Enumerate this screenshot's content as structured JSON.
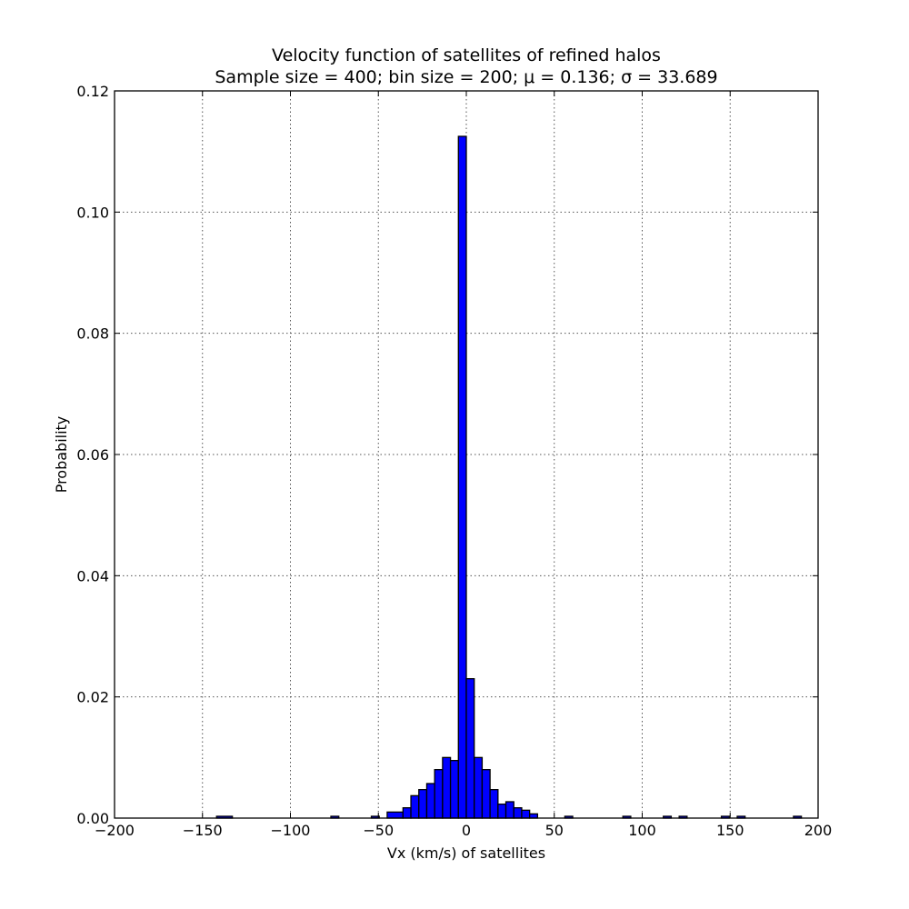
{
  "chart_data": {
    "type": "bar",
    "title_line1": "Velocity function of satellites of refined halos",
    "title_line2": "Sample size = 400; bin size = 200; μ = 0.136; σ = 33.689",
    "xlabel": "Vx (km/s) of satellites",
    "ylabel": "Probability",
    "xlim": [
      -200,
      200
    ],
    "ylim": [
      0,
      0.12
    ],
    "grid": true,
    "bar_color": "#0000ff",
    "edge_color": "#000000",
    "x_ticks": [
      {
        "value": -200,
        "label": "−200"
      },
      {
        "value": -150,
        "label": "−150"
      },
      {
        "value": -100,
        "label": "−100"
      },
      {
        "value": -50,
        "label": "−50"
      },
      {
        "value": 0,
        "label": "0"
      },
      {
        "value": 50,
        "label": "50"
      },
      {
        "value": 100,
        "label": "100"
      },
      {
        "value": 150,
        "label": "150"
      },
      {
        "value": 200,
        "label": "200"
      }
    ],
    "y_ticks": [
      {
        "value": 0,
        "label": "0.00"
      },
      {
        "value": 0.02,
        "label": "0.02"
      },
      {
        "value": 0.04,
        "label": "0.04"
      },
      {
        "value": 0.06,
        "label": "0.06"
      },
      {
        "value": 0.08,
        "label": "0.08"
      },
      {
        "value": 0.1,
        "label": "0.10"
      },
      {
        "value": 0.12,
        "label": "0.12"
      }
    ],
    "bins": [
      {
        "x0": -142.0,
        "x1": -133.0,
        "value": 0.0003
      },
      {
        "x0": -77.0,
        "x1": -72.5,
        "value": 0.0003
      },
      {
        "x0": -54.0,
        "x1": -49.5,
        "value": 0.0003
      },
      {
        "x0": -45.0,
        "x1": -36.0,
        "value": 0.001
      },
      {
        "x0": -36.0,
        "x1": -31.5,
        "value": 0.0017
      },
      {
        "x0": -31.5,
        "x1": -27.0,
        "value": 0.0037
      },
      {
        "x0": -27.0,
        "x1": -22.5,
        "value": 0.0047
      },
      {
        "x0": -22.5,
        "x1": -18.0,
        "value": 0.0057
      },
      {
        "x0": -18.0,
        "x1": -13.5,
        "value": 0.008
      },
      {
        "x0": -13.5,
        "x1": -9.0,
        "value": 0.01
      },
      {
        "x0": -9.0,
        "x1": -4.5,
        "value": 0.0095
      },
      {
        "x0": -4.5,
        "x1": 0.0,
        "value": 0.1125
      },
      {
        "x0": 0.0,
        "x1": 4.5,
        "value": 0.023
      },
      {
        "x0": 4.5,
        "x1": 9.0,
        "value": 0.01
      },
      {
        "x0": 9.0,
        "x1": 13.5,
        "value": 0.008
      },
      {
        "x0": 13.5,
        "x1": 18.0,
        "value": 0.0047
      },
      {
        "x0": 18.0,
        "x1": 22.5,
        "value": 0.0023
      },
      {
        "x0": 22.5,
        "x1": 27.0,
        "value": 0.0027
      },
      {
        "x0": 27.0,
        "x1": 31.5,
        "value": 0.0017
      },
      {
        "x0": 31.5,
        "x1": 36.0,
        "value": 0.0013
      },
      {
        "x0": 36.0,
        "x1": 40.5,
        "value": 0.0007
      },
      {
        "x0": 56.0,
        "x1": 60.5,
        "value": 0.0003
      },
      {
        "x0": 89.0,
        "x1": 93.5,
        "value": 0.0003
      },
      {
        "x0": 112.0,
        "x1": 116.5,
        "value": 0.0003
      },
      {
        "x0": 121.0,
        "x1": 125.5,
        "value": 0.0003
      },
      {
        "x0": 145.0,
        "x1": 149.5,
        "value": 0.0003
      },
      {
        "x0": 154.0,
        "x1": 158.5,
        "value": 0.0003
      },
      {
        "x0": 186.0,
        "x1": 190.5,
        "value": 0.0003
      }
    ]
  }
}
